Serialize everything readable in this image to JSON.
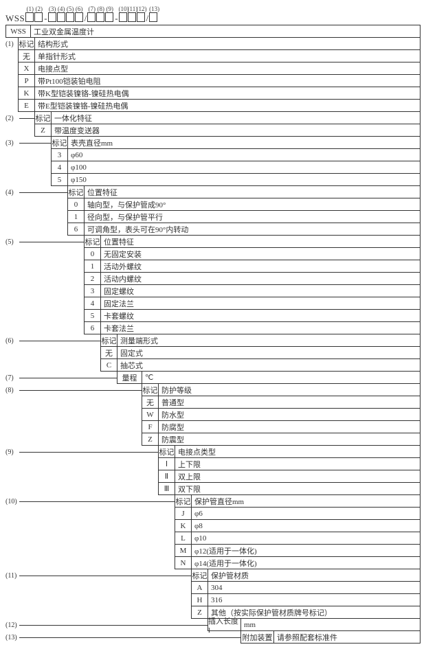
{
  "pattern_prefix": "WSS",
  "pattern_positions": [
    "(1)",
    "(2)",
    "(3)",
    "(4)",
    "(5)",
    "(6)",
    "(7)",
    "(8)",
    "(9)",
    "(10)",
    "(11)",
    "(12)",
    "(13)"
  ],
  "groups": [
    {
      "num": "(1)",
      "indent": 18,
      "header": {
        "code": "WSS",
        "wide": true,
        "desc": "工业双金属温度计"
      },
      "label": {
        "code": "标记",
        "desc": "结构形式"
      },
      "rows": [
        {
          "code": "无",
          "desc": "单指针形式"
        },
        {
          "code": "X",
          "desc": "电接点型"
        },
        {
          "code": "P",
          "desc": "带Pt100铠装铂电阻"
        },
        {
          "code": "K",
          "desc": "带K型铠装镍铬-镍硅热电偶"
        },
        {
          "code": "E",
          "desc": "带E型铠装镍铬-镍硅热电偶"
        }
      ]
    },
    {
      "num": "(2)",
      "indent": 42,
      "label": {
        "code": "标记",
        "desc": "一体化特征"
      },
      "rows": [
        {
          "code": "Z",
          "desc": "带温度变送器"
        }
      ]
    },
    {
      "num": "(3)",
      "indent": 66,
      "label": {
        "code": "标记",
        "desc": "表壳直径mm"
      },
      "rows": [
        {
          "code": "3",
          "desc": "φ60"
        },
        {
          "code": "4",
          "desc": "φ100"
        },
        {
          "code": "5",
          "desc": "φ150"
        }
      ]
    },
    {
      "num": "(4)",
      "indent": 90,
      "label": {
        "code": "标记",
        "desc": "位置特征"
      },
      "rows": [
        {
          "code": "0",
          "desc": "轴向型，与保护管成90°"
        },
        {
          "code": "1",
          "desc": "径向型，与保护管平行"
        },
        {
          "code": "6",
          "desc": "可调角型，表头可在90°内转动"
        }
      ]
    },
    {
      "num": "(5)",
      "indent": 114,
      "label": {
        "code": "标记",
        "desc": "位置特征"
      },
      "rows": [
        {
          "code": "0",
          "desc": "无固定安装"
        },
        {
          "code": "1",
          "desc": "活动外螺纹"
        },
        {
          "code": "2",
          "desc": "活动内螺纹"
        },
        {
          "code": "3",
          "desc": "固定螺纹"
        },
        {
          "code": "4",
          "desc": "固定法兰"
        },
        {
          "code": "5",
          "desc": "卡套螺纹"
        },
        {
          "code": "6",
          "desc": "卡套法兰"
        }
      ]
    },
    {
      "num": "(6)",
      "indent": 138,
      "label": {
        "code": "标记",
        "desc": "测量端形式"
      },
      "rows": [
        {
          "code": "无",
          "desc": "固定式"
        },
        {
          "code": "C",
          "desc": "抽芯式"
        }
      ]
    },
    {
      "num": "(7)",
      "indent": 162,
      "label": {
        "code": "量程",
        "desc": "℃",
        "wide": true
      },
      "rows": []
    },
    {
      "num": "(8)",
      "indent": 198,
      "label": {
        "code": "标记",
        "desc": "防护等级"
      },
      "rows": [
        {
          "code": "无",
          "desc": "普通型"
        },
        {
          "code": "W",
          "desc": "防水型"
        },
        {
          "code": "F",
          "desc": "防腐型"
        },
        {
          "code": "Z",
          "desc": "防震型"
        }
      ]
    },
    {
      "num": "(9)",
      "indent": 222,
      "label": {
        "code": "标记",
        "desc": "电接点类型"
      },
      "rows": [
        {
          "code": "Ⅰ",
          "desc": "上下限"
        },
        {
          "code": "Ⅱ",
          "desc": "双上限"
        },
        {
          "code": "Ⅲ",
          "desc": "双下限"
        }
      ]
    },
    {
      "num": "(10)",
      "indent": 246,
      "label": {
        "code": "标记",
        "desc": "保护管直径mm"
      },
      "rows": [
        {
          "code": "J",
          "desc": "φ6"
        },
        {
          "code": "K",
          "desc": "φ8"
        },
        {
          "code": "L",
          "desc": "φ10"
        },
        {
          "code": "M",
          "desc": "φ12(适用于一体化)"
        },
        {
          "code": "N",
          "desc": "φ14(适用于一体化)"
        }
      ]
    },
    {
      "num": "(11)",
      "indent": 270,
      "label": {
        "code": "标记",
        "desc": "保护管材质"
      },
      "rows": [
        {
          "code": "A",
          "desc": "304"
        },
        {
          "code": "H",
          "desc": "316"
        },
        {
          "code": "Z",
          "desc": "其他（按实际保护管材质牌号标记）"
        }
      ]
    },
    {
      "num": "(12)",
      "indent": 294,
      "label": {
        "code": "插入长度l",
        "desc": "mm",
        "wide2": true
      },
      "rows": []
    },
    {
      "num": "(13)",
      "indent": 342,
      "label": {
        "code": "附加装置",
        "desc": "请参照配套标准件",
        "wide2": true
      },
      "rows": []
    }
  ]
}
